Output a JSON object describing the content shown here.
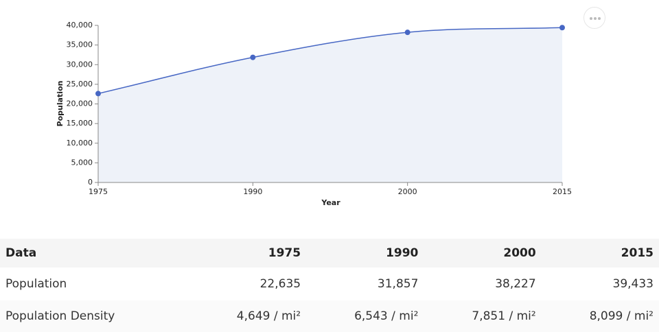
{
  "chart_data": {
    "type": "area",
    "categories": [
      "1975",
      "1990",
      "2000",
      "2015"
    ],
    "values": [
      22635,
      31857,
      38227,
      39433
    ],
    "color": "#4767c4",
    "fill": "#eef2f9",
    "x_label": "Year",
    "y_label": "Population",
    "ylim": [
      0,
      40000
    ],
    "yticks": [
      0,
      {
        "value": 5000,
        "label": "5,000"
      },
      {
        "value": 10000,
        "label": "10,000"
      },
      {
        "value": 15000,
        "label": "15,000"
      },
      {
        "value": 20000,
        "label": "20,000"
      },
      {
        "value": 25000,
        "label": "25,000"
      },
      {
        "value": 30000,
        "label": "30,000"
      },
      {
        "value": 35000,
        "label": "35,000"
      },
      {
        "value": 40000,
        "label": "40,000"
      }
    ]
  },
  "table": {
    "header": [
      "Data",
      "1975",
      "1990",
      "2000",
      "2015"
    ],
    "rows": [
      [
        "Population",
        "22,635",
        "31,857",
        "38,227",
        "39,433"
      ],
      [
        "Population Density",
        "4,649 / mi²",
        "6,543 / mi²",
        "7,851 / mi²",
        "8,099 / mi²"
      ]
    ]
  }
}
